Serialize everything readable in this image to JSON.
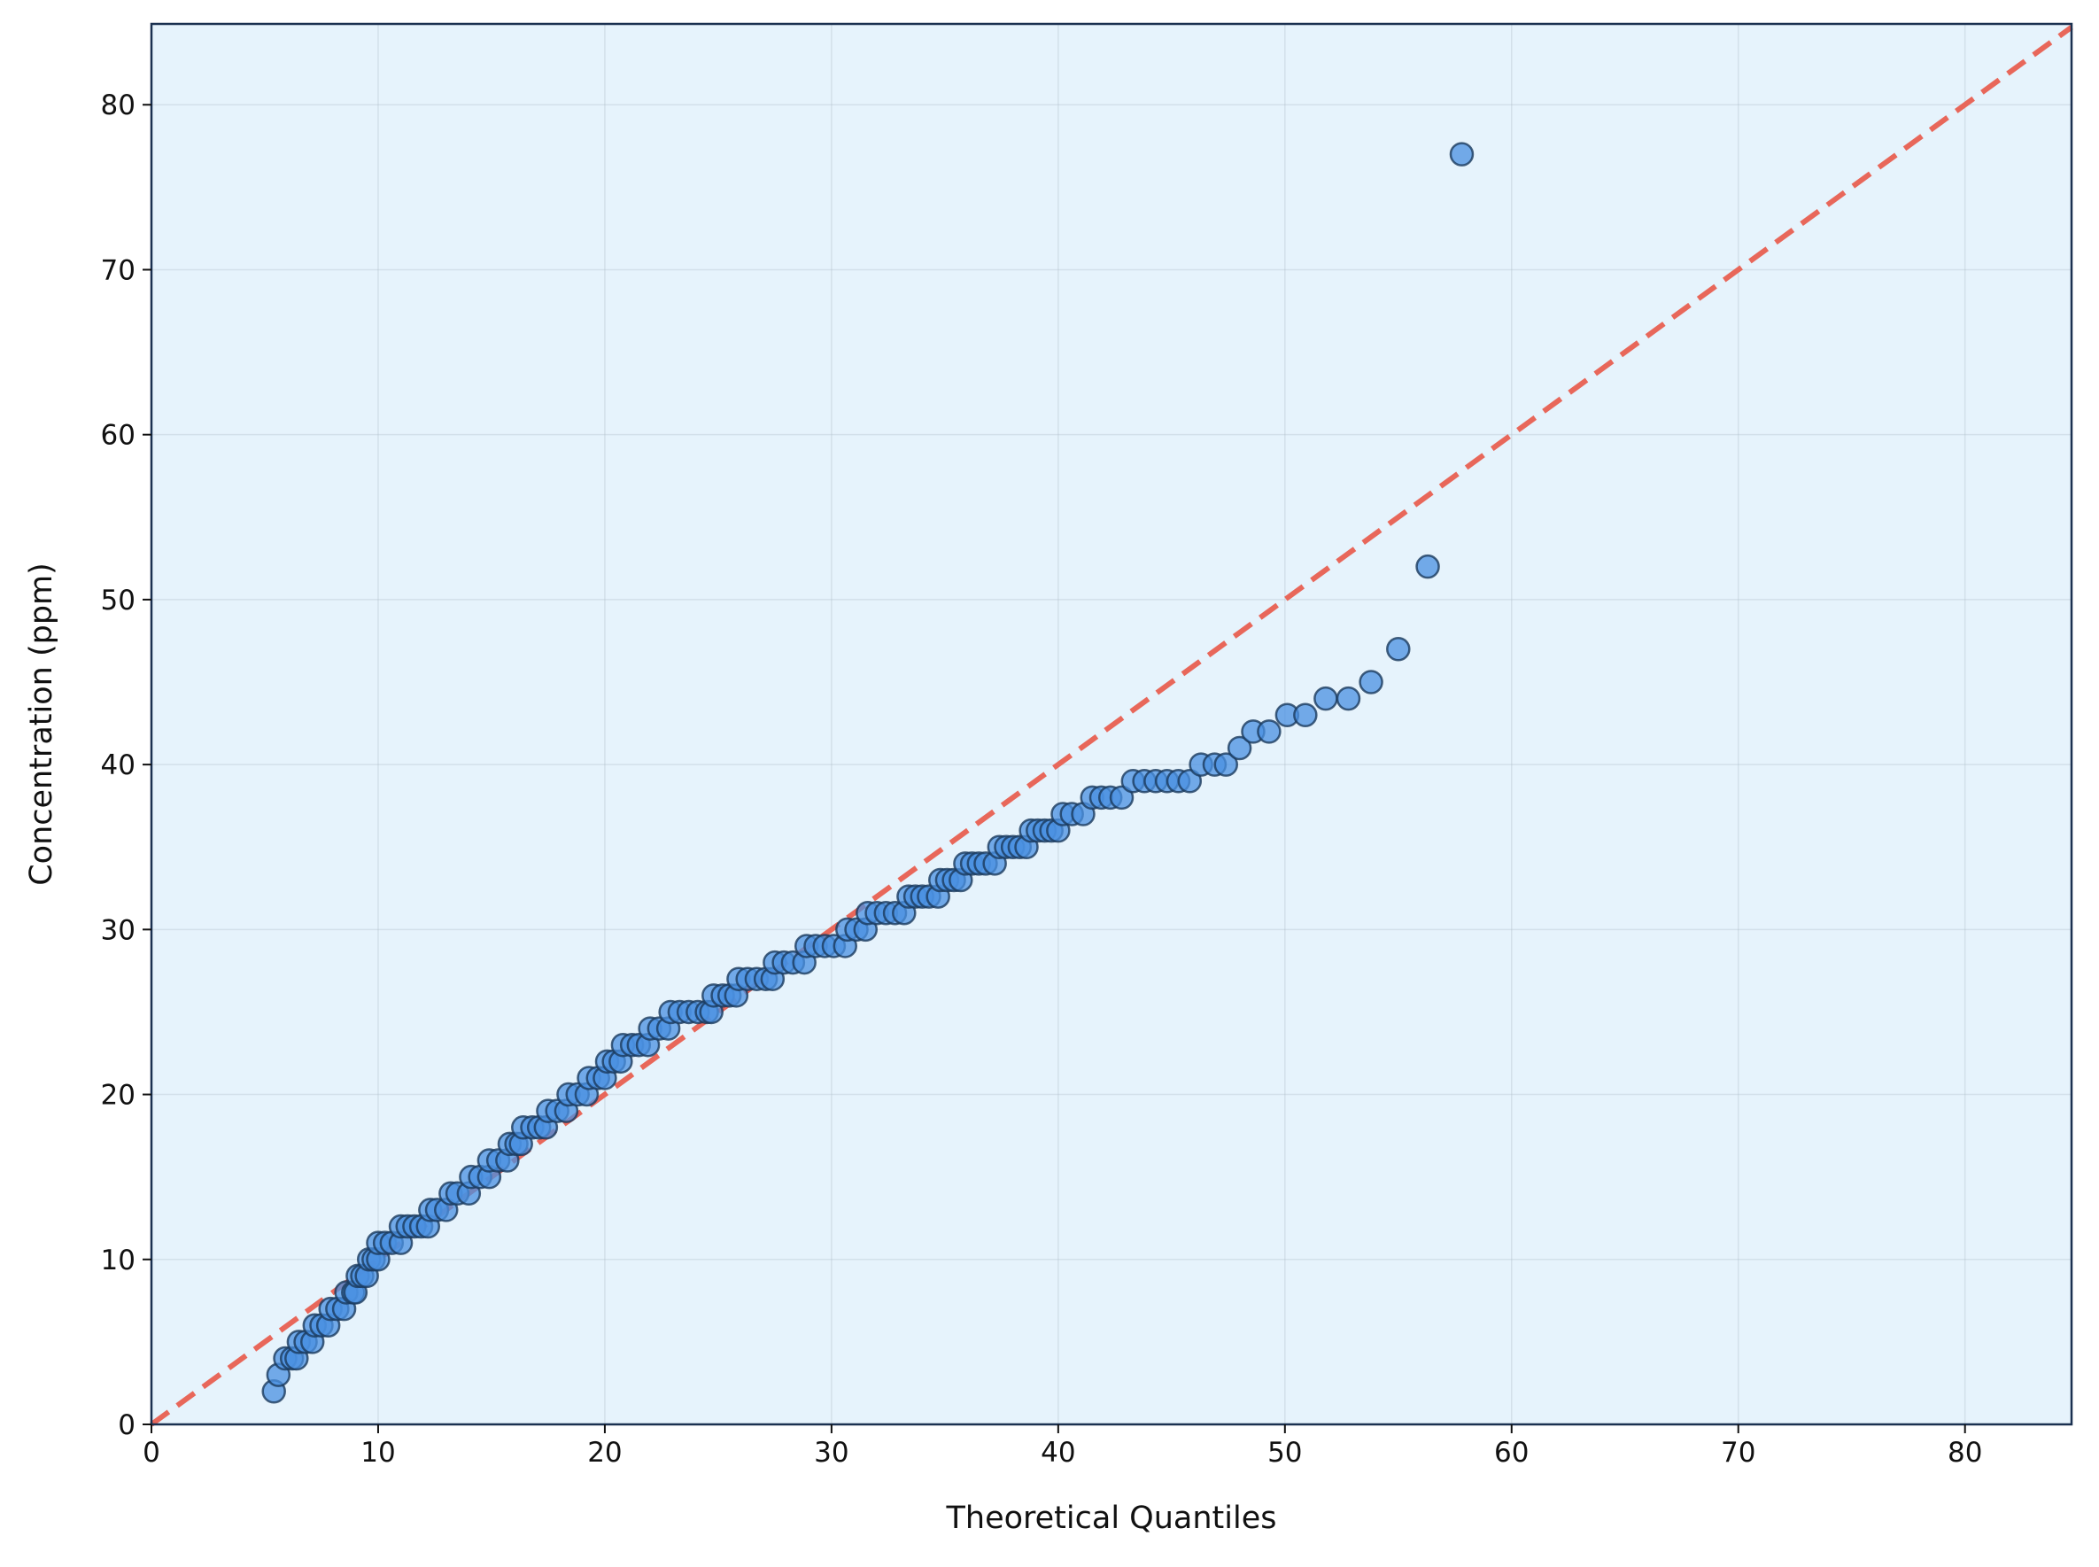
{
  "chart_data": {
    "type": "scatter",
    "title": "",
    "xlabel": "Theoretical Quantiles",
    "ylabel": "Concentration (ppm)",
    "xlim": [
      0,
      84.7
    ],
    "ylim": [
      0,
      84.9
    ],
    "xticks": [
      "0",
      "10",
      "20",
      "30",
      "40",
      "50",
      "60",
      "70",
      "80"
    ],
    "yticks": [
      "0",
      "10",
      "20",
      "30",
      "40",
      "50",
      "60",
      "70",
      "80"
    ],
    "grid": true,
    "legend": "none",
    "colors": {
      "background": "#e6f3fc",
      "marker_fill": "#4a90e2",
      "marker_edge": "#1a3a5c",
      "reference_line": "#e8675a",
      "spine": "#1a3050"
    },
    "reference_line": {
      "style": "dashed",
      "from": [
        0,
        0
      ],
      "to": [
        84.7,
        84.7
      ]
    },
    "points": [
      [
        5.4,
        2
      ],
      [
        5.6,
        3
      ],
      [
        5.9,
        4
      ],
      [
        6.2,
        4
      ],
      [
        6.4,
        4
      ],
      [
        6.5,
        5
      ],
      [
        6.8,
        5
      ],
      [
        7.1,
        5
      ],
      [
        7.2,
        6
      ],
      [
        7.5,
        6
      ],
      [
        7.8,
        6
      ],
      [
        7.9,
        7
      ],
      [
        8.2,
        7
      ],
      [
        8.5,
        7
      ],
      [
        8.6,
        8
      ],
      [
        8.9,
        8
      ],
      [
        9.0,
        8
      ],
      [
        9.1,
        9
      ],
      [
        9.3,
        9
      ],
      [
        9.5,
        9
      ],
      [
        9.6,
        10
      ],
      [
        9.8,
        10
      ],
      [
        10.0,
        10
      ],
      [
        10.0,
        11
      ],
      [
        10.3,
        11
      ],
      [
        10.6,
        11
      ],
      [
        11.0,
        11
      ],
      [
        11.0,
        12
      ],
      [
        11.3,
        12
      ],
      [
        11.6,
        12
      ],
      [
        11.9,
        12
      ],
      [
        12.2,
        12
      ],
      [
        12.3,
        13
      ],
      [
        12.6,
        13
      ],
      [
        13.0,
        13
      ],
      [
        13.2,
        14
      ],
      [
        13.5,
        14
      ],
      [
        14.0,
        14
      ],
      [
        14.1,
        15
      ],
      [
        14.5,
        15
      ],
      [
        14.9,
        15
      ],
      [
        14.9,
        16
      ],
      [
        15.3,
        16
      ],
      [
        15.7,
        16
      ],
      [
        15.8,
        17
      ],
      [
        16.1,
        17
      ],
      [
        16.3,
        17
      ],
      [
        16.4,
        18
      ],
      [
        16.8,
        18
      ],
      [
        17.1,
        18
      ],
      [
        17.4,
        18
      ],
      [
        17.5,
        19
      ],
      [
        17.9,
        19
      ],
      [
        18.3,
        19
      ],
      [
        18.4,
        20
      ],
      [
        18.8,
        20
      ],
      [
        19.2,
        20
      ],
      [
        19.3,
        21
      ],
      [
        19.7,
        21
      ],
      [
        20.0,
        21
      ],
      [
        20.1,
        22
      ],
      [
        20.4,
        22
      ],
      [
        20.7,
        22
      ],
      [
        20.8,
        23
      ],
      [
        21.2,
        23
      ],
      [
        21.5,
        23
      ],
      [
        21.9,
        23
      ],
      [
        22.0,
        24
      ],
      [
        22.4,
        24
      ],
      [
        22.8,
        24
      ],
      [
        22.9,
        25
      ],
      [
        23.3,
        25
      ],
      [
        23.7,
        25
      ],
      [
        24.1,
        25
      ],
      [
        24.5,
        25
      ],
      [
        24.7,
        25
      ],
      [
        24.8,
        26
      ],
      [
        25.2,
        26
      ],
      [
        25.5,
        26
      ],
      [
        25.8,
        26
      ],
      [
        25.9,
        27
      ],
      [
        26.3,
        27
      ],
      [
        26.7,
        27
      ],
      [
        27.1,
        27
      ],
      [
        27.4,
        27
      ],
      [
        27.5,
        28
      ],
      [
        27.9,
        28
      ],
      [
        28.3,
        28
      ],
      [
        28.8,
        28
      ],
      [
        28.9,
        29
      ],
      [
        29.3,
        29
      ],
      [
        29.7,
        29
      ],
      [
        30.1,
        29
      ],
      [
        30.6,
        29
      ],
      [
        30.7,
        30
      ],
      [
        31.1,
        30
      ],
      [
        31.5,
        30
      ],
      [
        31.6,
        31
      ],
      [
        32.0,
        31
      ],
      [
        32.4,
        31
      ],
      [
        32.8,
        31
      ],
      [
        33.2,
        31
      ],
      [
        33.4,
        32
      ],
      [
        33.7,
        32
      ],
      [
        34.0,
        32
      ],
      [
        34.3,
        32
      ],
      [
        34.7,
        32
      ],
      [
        34.8,
        33
      ],
      [
        35.1,
        33
      ],
      [
        35.4,
        33
      ],
      [
        35.7,
        33
      ],
      [
        35.9,
        34
      ],
      [
        36.2,
        34
      ],
      [
        36.5,
        34
      ],
      [
        36.8,
        34
      ],
      [
        37.2,
        34
      ],
      [
        37.4,
        35
      ],
      [
        37.7,
        35
      ],
      [
        38.0,
        35
      ],
      [
        38.3,
        35
      ],
      [
        38.6,
        35
      ],
      [
        38.8,
        36
      ],
      [
        39.1,
        36
      ],
      [
        39.4,
        36
      ],
      [
        39.7,
        36
      ],
      [
        40.0,
        36
      ],
      [
        40.2,
        37
      ],
      [
        40.6,
        37
      ],
      [
        41.1,
        37
      ],
      [
        41.5,
        38
      ],
      [
        41.9,
        38
      ],
      [
        42.3,
        38
      ],
      [
        42.8,
        38
      ],
      [
        43.3,
        39
      ],
      [
        43.8,
        39
      ],
      [
        44.3,
        39
      ],
      [
        44.8,
        39
      ],
      [
        45.3,
        39
      ],
      [
        45.8,
        39
      ],
      [
        46.3,
        40
      ],
      [
        46.9,
        40
      ],
      [
        47.4,
        40
      ],
      [
        48.0,
        41
      ],
      [
        48.6,
        42
      ],
      [
        49.3,
        42
      ],
      [
        50.1,
        43
      ],
      [
        50.9,
        43
      ],
      [
        51.8,
        44
      ],
      [
        52.8,
        44
      ],
      [
        53.8,
        45
      ],
      [
        55.0,
        47
      ],
      [
        56.3,
        52
      ],
      [
        57.8,
        77
      ]
    ]
  }
}
